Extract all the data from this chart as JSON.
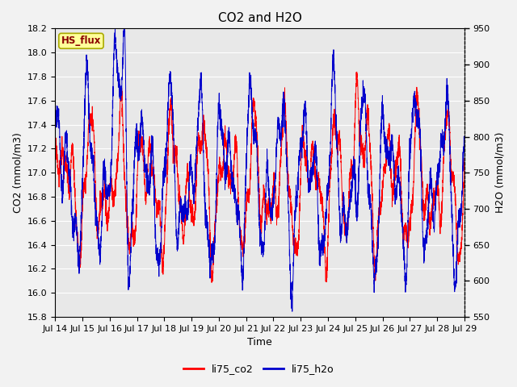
{
  "title": "CO2 and H2O",
  "xlabel": "Time",
  "ylabel_left": "CO2 (mmol/m3)",
  "ylabel_right": "H2O (mmol/m3)",
  "xlim": [
    0,
    15
  ],
  "ylim_left": [
    15.8,
    18.2
  ],
  "ylim_right": [
    550,
    950
  ],
  "yticks_left": [
    15.8,
    16.0,
    16.2,
    16.4,
    16.6,
    16.8,
    17.0,
    17.2,
    17.4,
    17.6,
    17.8,
    18.0,
    18.2
  ],
  "yticks_right": [
    550,
    600,
    650,
    700,
    750,
    800,
    850,
    900,
    950
  ],
  "xtick_labels": [
    "Jul 14",
    "Jul 15",
    "Jul 16",
    "Jul 17",
    "Jul 18",
    "Jul 19",
    "Jul 20",
    "Jul 21",
    "Jul 22",
    "Jul 23",
    "Jul 24",
    "Jul 25",
    "Jul 26",
    "Jul 27",
    "Jul 28",
    "Jul 29"
  ],
  "xtick_positions": [
    0,
    1,
    2,
    3,
    4,
    5,
    6,
    7,
    8,
    9,
    10,
    11,
    12,
    13,
    14,
    15
  ],
  "color_co2": "#FF0000",
  "color_h2o": "#0000CC",
  "legend_box_label": "HS_flux",
  "legend_box_facecolor": "#FFFF99",
  "legend_box_edgecolor": "#AAAA00",
  "legend_label_co2": "li75_co2",
  "legend_label_h2o": "li75_h2o",
  "plot_bg_color": "#E8E8E8",
  "fig_bg_color": "#F2F2F2",
  "grid_color": "#FFFFFF",
  "title_fontsize": 11,
  "tick_fontsize": 8,
  "label_fontsize": 9
}
